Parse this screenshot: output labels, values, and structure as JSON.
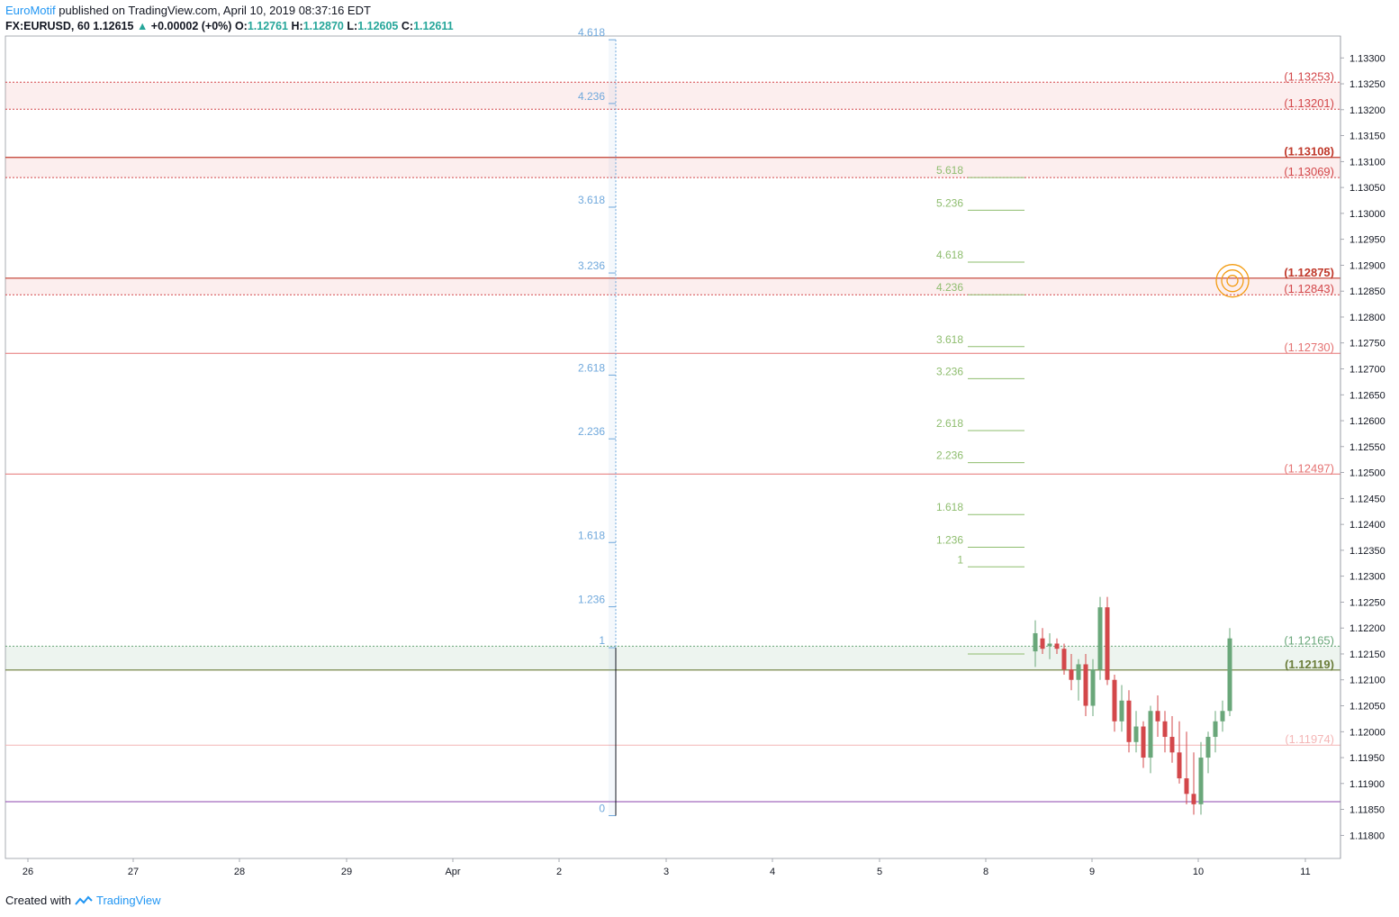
{
  "header": {
    "author": "EuroMotif",
    "published_text": "published on TradingView.com, April 10, 2019 08:37:16 EDT",
    "symbol": "FX:EURUSD, 60",
    "last": "1.12615",
    "change": "+0.00002 (+0%)",
    "open_label": "O:",
    "open": "1.12761",
    "high_label": "H:",
    "high": "1.12870",
    "low_label": "L:",
    "low": "1.12605",
    "close_label": "C:",
    "close": "1.12611"
  },
  "footer": {
    "created_with": "Created with",
    "brand": "TradingView"
  },
  "colors": {
    "up": "#6aa77a",
    "down": "#d3474a",
    "resistance": "#d3474a",
    "support": "#6aa77a",
    "fib_left": "#6fa8dc",
    "fib_right": "#8ebd6e",
    "purple": "#8e44ad",
    "orange": "#f39c12"
  },
  "chart_data": {
    "type": "candlestick",
    "symbol": "FX:EURUSD",
    "interval": "60",
    "ylim": [
      1.1176,
      1.1334
    ],
    "y_ticks": [
      "1.13300",
      "1.13250",
      "1.13200",
      "1.13150",
      "1.13100",
      "1.13050",
      "1.13000",
      "1.12950",
      "1.12900",
      "1.12850",
      "1.12800",
      "1.12750",
      "1.12700",
      "1.12650",
      "1.12600",
      "1.12550",
      "1.12500",
      "1.12450",
      "1.12400",
      "1.12350",
      "1.12300",
      "1.12250",
      "1.12200",
      "1.12150",
      "1.12100",
      "1.12050",
      "1.12000",
      "1.11950",
      "1.11900",
      "1.11850",
      "1.11800"
    ],
    "x_ticks": [
      "26",
      "27",
      "28",
      "29",
      "Apr",
      "2",
      "3",
      "4",
      "5",
      "8",
      "9",
      "10",
      "11"
    ],
    "levels": [
      {
        "label": "(1.13253)",
        "value": 1.13253,
        "style": "dotted",
        "color": "#d3474a"
      },
      {
        "label": "(1.13201)",
        "value": 1.13201,
        "style": "dotted",
        "color": "#d3474a"
      },
      {
        "label": "(1.13108)",
        "value": 1.13108,
        "style": "solid",
        "color": "#c0392b",
        "bold": true
      },
      {
        "label": "(1.13069)",
        "value": 1.13069,
        "style": "dotted",
        "color": "#d3474a"
      },
      {
        "label": "(1.12875)",
        "value": 1.12875,
        "style": "solid",
        "color": "#c0392b",
        "bold": true
      },
      {
        "label": "(1.12843)",
        "value": 1.12843,
        "style": "dotted",
        "color": "#d3474a"
      },
      {
        "label": "(1.12730)",
        "value": 1.1273,
        "style": "solid",
        "color": "#e57373"
      },
      {
        "label": "(1.12497)",
        "value": 1.12497,
        "style": "solid",
        "color": "#e57373"
      },
      {
        "label": "(1.12165)",
        "value": 1.12165,
        "style": "dotted",
        "color": "#6aa77a"
      },
      {
        "label": "(1.12119)",
        "value": 1.12119,
        "style": "solid",
        "color": "#6b7d3a",
        "bold": true
      },
      {
        "label": "(1.11974)",
        "value": 1.11974,
        "style": "solid",
        "color": "#f4b6b6"
      },
      {
        "label": "",
        "value": 1.11865,
        "style": "solid",
        "color": "#8e44ad"
      }
    ],
    "zones": [
      {
        "from": 1.13201,
        "to": 1.13253,
        "color": "red"
      },
      {
        "from": 1.13069,
        "to": 1.13108,
        "color": "red"
      },
      {
        "from": 1.12843,
        "to": 1.12875,
        "color": "red"
      },
      {
        "from": 1.12119,
        "to": 1.12165,
        "color": "green"
      }
    ],
    "fib_left": {
      "anchor_low": 1.11838,
      "anchor_high": 1.12162,
      "levels": [
        {
          "label": "4.618",
          "value": 1.13335
        },
        {
          "label": "4.236",
          "value": 1.13212
        },
        {
          "label": "3.618",
          "value": 1.13012
        },
        {
          "label": "3.236",
          "value": 1.12885
        },
        {
          "label": "2.618",
          "value": 1.12688
        },
        {
          "label": "2.236",
          "value": 1.12565
        },
        {
          "label": "1.618",
          "value": 1.12365
        },
        {
          "label": "1.236",
          "value": 1.12241
        },
        {
          "label": "1",
          "value": 1.12162
        },
        {
          "label": "0",
          "value": 1.11838
        }
      ]
    },
    "fib_right": {
      "levels": [
        {
          "label": "5.618",
          "value": 1.13069
        },
        {
          "label": "5.236",
          "value": 1.13006
        },
        {
          "label": "4.618",
          "value": 1.12906
        },
        {
          "label": "4.236",
          "value": 1.12843
        },
        {
          "label": "3.618",
          "value": 1.12743
        },
        {
          "label": "3.236",
          "value": 1.12681
        },
        {
          "label": "2.618",
          "value": 1.12581
        },
        {
          "label": "2.236",
          "value": 1.12519
        },
        {
          "label": "1.618",
          "value": 1.12419
        },
        {
          "label": "1.236",
          "value": 1.12356
        },
        {
          "label": "1",
          "value": 1.12318
        },
        {
          "label": "",
          "value": 1.1215
        }
      ]
    },
    "candles": [
      [
        1.12155,
        1.12215,
        1.12125,
        1.1219
      ],
      [
        1.1218,
        1.122,
        1.1215,
        1.1216
      ],
      [
        1.12165,
        1.1219,
        1.1214,
        1.1217
      ],
      [
        1.1217,
        1.1218,
        1.1215,
        1.1216
      ],
      [
        1.1216,
        1.1217,
        1.1211,
        1.1212
      ],
      [
        1.1212,
        1.1215,
        1.1208,
        1.121
      ],
      [
        1.121,
        1.1214,
        1.1206,
        1.1213
      ],
      [
        1.1213,
        1.1215,
        1.1203,
        1.1205
      ],
      [
        1.1205,
        1.1214,
        1.1203,
        1.1212
      ],
      [
        1.1212,
        1.1226,
        1.121,
        1.1224
      ],
      [
        1.1224,
        1.1226,
        1.1209,
        1.121
      ],
      [
        1.121,
        1.1211,
        1.12,
        1.1202
      ],
      [
        1.1202,
        1.1209,
        1.12,
        1.1206
      ],
      [
        1.1206,
        1.1208,
        1.1196,
        1.1198
      ],
      [
        1.1198,
        1.1204,
        1.1196,
        1.1201
      ],
      [
        1.1201,
        1.1202,
        1.1193,
        1.1195
      ],
      [
        1.1195,
        1.1205,
        1.1192,
        1.1204
      ],
      [
        1.1204,
        1.1207,
        1.1199,
        1.1202
      ],
      [
        1.1202,
        1.1204,
        1.1196,
        1.1199
      ],
      [
        1.1199,
        1.1203,
        1.1194,
        1.1196
      ],
      [
        1.1196,
        1.1202,
        1.119,
        1.1191
      ],
      [
        1.1191,
        1.12,
        1.1186,
        1.1188
      ],
      [
        1.1188,
        1.1196,
        1.1184,
        1.1186
      ],
      [
        1.1186,
        1.1198,
        1.1184,
        1.1195
      ],
      [
        1.1195,
        1.12,
        1.1192,
        1.1199
      ],
      [
        1.1199,
        1.1204,
        1.1196,
        1.1202
      ],
      [
        1.1202,
        1.1206,
        1.12,
        1.1204
      ],
      [
        1.1204,
        1.122,
        1.1203,
        1.1218
      ]
    ]
  }
}
